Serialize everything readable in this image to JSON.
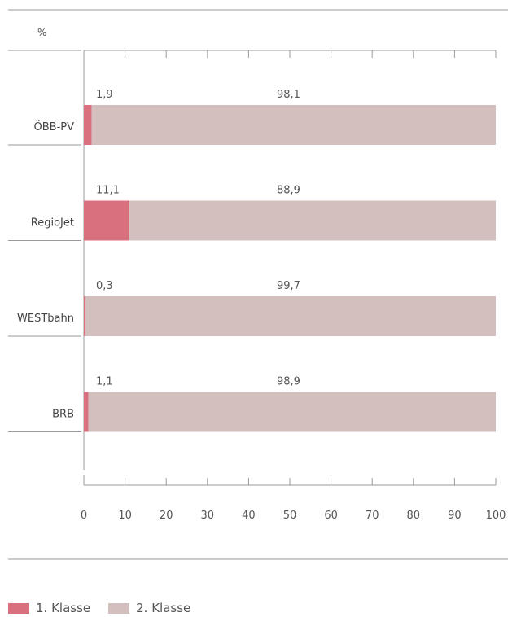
{
  "chart_data": {
    "type": "bar",
    "orientation": "horizontal",
    "stacked": true,
    "unit_label": "%",
    "categories": [
      "ÖBB-PV",
      "RegioJet",
      "WESTbahn",
      "BRB"
    ],
    "series": [
      {
        "name": "1. Klasse",
        "values": [
          1.9,
          11.1,
          0.3,
          1.1
        ],
        "labels": [
          "1,9",
          "11,1",
          "0,3",
          "1,1"
        ],
        "color": "#d9707e"
      },
      {
        "name": "2. Klasse",
        "values": [
          98.1,
          88.9,
          99.7,
          98.9
        ],
        "labels": [
          "98,1",
          "88,9",
          "99,7",
          "98,9"
        ],
        "color": "#d4bfbf"
      }
    ],
    "xlim": [
      0,
      100
    ],
    "xticks": [
      "0",
      "10",
      "20",
      "30",
      "40",
      "50",
      "60",
      "70",
      "80",
      "90",
      "100"
    ],
    "legend_position": "bottom-left",
    "grid": false
  }
}
